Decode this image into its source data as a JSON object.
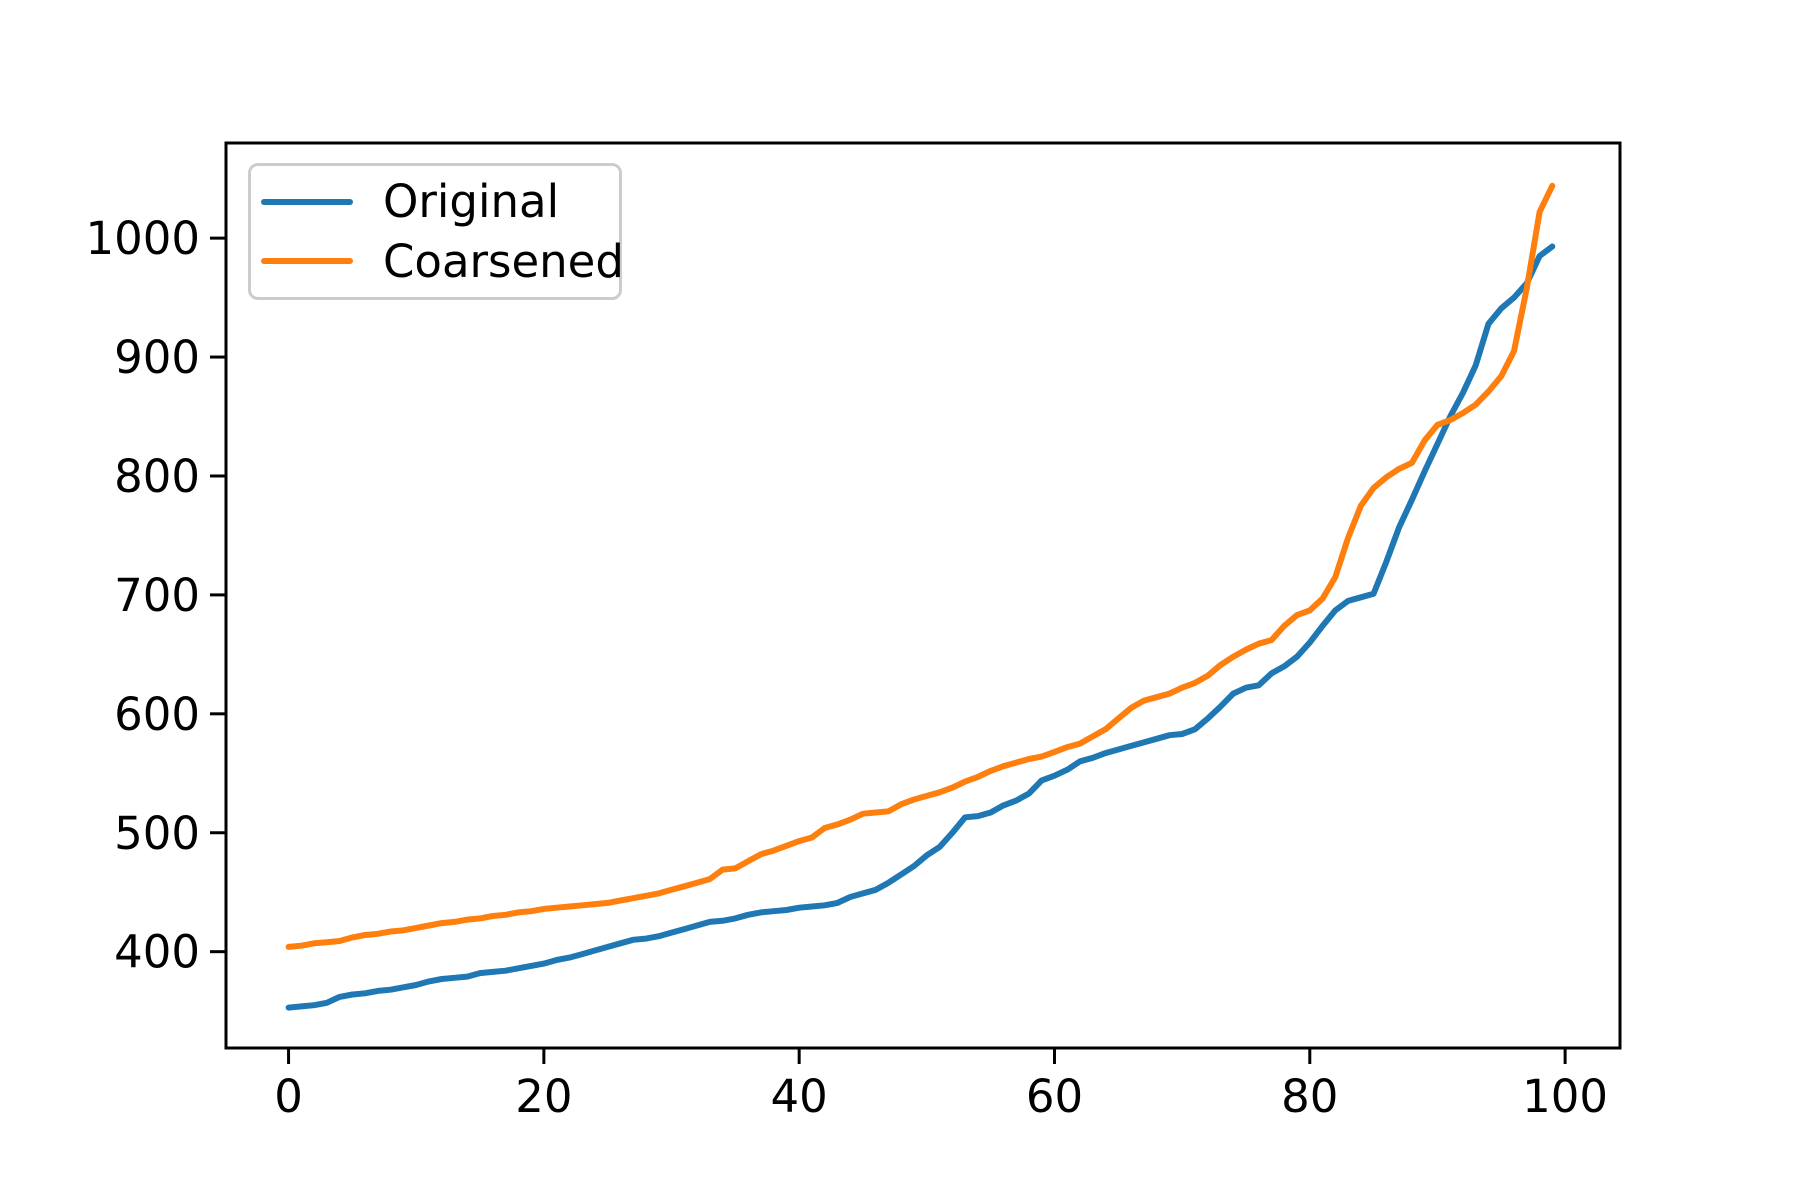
{
  "figure": {
    "background": "#ffffff",
    "axes_edge_color": "#000000",
    "tick_color": "#000000"
  },
  "legend": {
    "position": "upper left",
    "border_color": "#cccccc"
  },
  "chart_data": {
    "type": "line",
    "title": "",
    "xlabel": "",
    "ylabel": "",
    "grid": false,
    "legend_position": "upper left",
    "x_ticks": [
      0,
      20,
      40,
      60,
      80,
      100
    ],
    "y_ticks": [
      400,
      500,
      600,
      700,
      800,
      900,
      1000
    ],
    "xlim": [
      -4.9,
      104.3
    ],
    "ylim": [
      319,
      1080
    ],
    "x": [
      0,
      1,
      2,
      3,
      4,
      5,
      6,
      7,
      8,
      9,
      10,
      11,
      12,
      13,
      14,
      15,
      16,
      17,
      18,
      19,
      20,
      21,
      22,
      23,
      24,
      25,
      26,
      27,
      28,
      29,
      30,
      31,
      32,
      33,
      34,
      35,
      36,
      37,
      38,
      39,
      40,
      41,
      42,
      43,
      44,
      45,
      46,
      47,
      48,
      49,
      50,
      51,
      52,
      53,
      54,
      55,
      56,
      57,
      58,
      59,
      60,
      61,
      62,
      63,
      64,
      65,
      66,
      67,
      68,
      69,
      70,
      71,
      72,
      73,
      74,
      75,
      76,
      77,
      78,
      79,
      80,
      81,
      82,
      83,
      84,
      85,
      86,
      87,
      88,
      89,
      90,
      91,
      92,
      93,
      94,
      95,
      96,
      97,
      98,
      99
    ],
    "series": [
      {
        "name": "Original",
        "color": "#1f77b4",
        "values": [
          353,
          354,
          355,
          357,
          362,
          364,
          365,
          367,
          368,
          370,
          372,
          375,
          377,
          378,
          379,
          382,
          383,
          384,
          386,
          388,
          390,
          393,
          395,
          398,
          401,
          404,
          407,
          410,
          411,
          413,
          416,
          419,
          422,
          425,
          426,
          428,
          431,
          433,
          434,
          435,
          437,
          438,
          439,
          441,
          446,
          449,
          452,
          458,
          465,
          472,
          481,
          488,
          500,
          513,
          514,
          517,
          523,
          527,
          533,
          544,
          548,
          553,
          560,
          563,
          567,
          570,
          573,
          576,
          579,
          582,
          583,
          587,
          596,
          606,
          617,
          622,
          624,
          634,
          640,
          648,
          660,
          674,
          687,
          695,
          698,
          701,
          728,
          757,
          780,
          804,
          827,
          850,
          870,
          893,
          928,
          941,
          950,
          962,
          985,
          993
        ]
      },
      {
        "name": "Coarsened",
        "color": "#ff7f0e",
        "values": [
          404,
          405,
          407,
          408,
          409,
          412,
          414,
          415,
          417,
          418,
          420,
          422,
          424,
          425,
          427,
          428,
          430,
          431,
          433,
          434,
          436,
          437,
          438,
          439,
          440,
          441,
          443,
          445,
          447,
          449,
          452,
          455,
          458,
          461,
          469,
          470,
          476,
          482,
          485,
          489,
          493,
          496,
          504,
          507,
          511,
          516,
          517,
          518,
          524,
          528,
          531,
          534,
          538,
          543,
          547,
          552,
          556,
          559,
          562,
          564,
          568,
          572,
          575,
          581,
          587,
          596,
          605,
          611,
          614,
          617,
          622,
          626,
          632,
          641,
          648,
          654,
          659,
          662,
          674,
          683,
          687,
          697,
          715,
          748,
          775,
          790,
          799,
          806,
          811,
          830,
          843,
          847,
          853,
          860,
          871,
          884,
          905,
          958,
          1022,
          1044
        ]
      }
    ]
  }
}
